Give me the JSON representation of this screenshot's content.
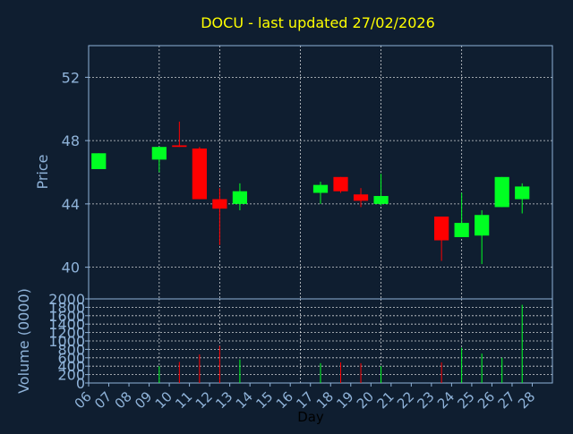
{
  "title": "DOCU - last updated 27/02/2026",
  "colors": {
    "background": "#0f1e30",
    "title": "#ffff00",
    "axis_text": "#8fb3d9",
    "xlabel_text": "#000000",
    "frame": "#8fb3d9",
    "grid": "#ffffff",
    "up": "#00ff22",
    "down": "#ff0000"
  },
  "chart_data": [
    {
      "type": "candlestick",
      "title": "DOCU - last updated 27/02/2026",
      "ylabel": "Price",
      "ylim": [
        38,
        54
      ],
      "yticks": [
        40,
        44,
        48,
        52
      ],
      "grid": true,
      "x_categories": [
        "06",
        "07",
        "08",
        "09",
        "10",
        "11",
        "12",
        "13",
        "14",
        "15",
        "16",
        "17",
        "18",
        "19",
        "20",
        "21",
        "22",
        "23",
        "24",
        "25",
        "26",
        "27",
        "28"
      ],
      "candles": [
        {
          "day": "06",
          "open": 46.2,
          "high": 47.2,
          "low": 46.2,
          "close": 47.2
        },
        {
          "day": "09",
          "open": 46.8,
          "high": 47.6,
          "low": 46.0,
          "close": 47.6
        },
        {
          "day": "10",
          "open": 47.7,
          "high": 49.2,
          "low": 47.6,
          "close": 47.6
        },
        {
          "day": "11",
          "open": 47.5,
          "high": 47.6,
          "low": 44.3,
          "close": 44.3
        },
        {
          "day": "12",
          "open": 44.3,
          "high": 45.0,
          "low": 41.4,
          "close": 43.7
        },
        {
          "day": "13",
          "open": 44.0,
          "high": 45.3,
          "low": 43.6,
          "close": 44.8
        },
        {
          "day": "17",
          "open": 44.7,
          "high": 45.4,
          "low": 44.0,
          "close": 45.2
        },
        {
          "day": "18",
          "open": 45.7,
          "high": 45.7,
          "low": 44.7,
          "close": 44.8
        },
        {
          "day": "19",
          "open": 44.6,
          "high": 45.0,
          "low": 43.8,
          "close": 44.2
        },
        {
          "day": "20",
          "open": 44.0,
          "high": 45.9,
          "low": 43.9,
          "close": 44.5
        },
        {
          "day": "23",
          "open": 43.2,
          "high": 43.2,
          "low": 40.4,
          "close": 41.7
        },
        {
          "day": "24",
          "open": 41.9,
          "high": 44.7,
          "low": 41.9,
          "close": 42.8
        },
        {
          "day": "25",
          "open": 42.0,
          "high": 43.6,
          "low": 40.2,
          "close": 43.3
        },
        {
          "day": "26",
          "open": 43.8,
          "high": 45.7,
          "low": 43.8,
          "close": 45.7
        },
        {
          "day": "27",
          "open": 44.3,
          "high": 45.3,
          "low": 43.4,
          "close": 45.1
        }
      ]
    },
    {
      "type": "bar",
      "ylabel": "Volume (0000)",
      "xlabel": "Day",
      "ylim": [
        0,
        2000
      ],
      "yticks": [
        0,
        200,
        400,
        600,
        800,
        1000,
        1200,
        1400,
        1600,
        1800,
        2000
      ],
      "grid": true,
      "x_categories": [
        "06",
        "07",
        "08",
        "09",
        "10",
        "11",
        "12",
        "13",
        "14",
        "15",
        "16",
        "17",
        "18",
        "19",
        "20",
        "21",
        "22",
        "23",
        "24",
        "25",
        "26",
        "27",
        "28"
      ],
      "bars": [
        {
          "day": "09",
          "value": 400,
          "color": "up"
        },
        {
          "day": "10",
          "value": 500,
          "color": "down"
        },
        {
          "day": "11",
          "value": 680,
          "color": "down"
        },
        {
          "day": "12",
          "value": 880,
          "color": "down"
        },
        {
          "day": "13",
          "value": 560,
          "color": "up"
        },
        {
          "day": "17",
          "value": 470,
          "color": "up"
        },
        {
          "day": "18",
          "value": 490,
          "color": "down"
        },
        {
          "day": "19",
          "value": 470,
          "color": "down"
        },
        {
          "day": "20",
          "value": 400,
          "color": "up"
        },
        {
          "day": "23",
          "value": 490,
          "color": "down"
        },
        {
          "day": "24",
          "value": 840,
          "color": "up"
        },
        {
          "day": "25",
          "value": 700,
          "color": "up"
        },
        {
          "day": "26",
          "value": 600,
          "color": "up"
        },
        {
          "day": "27",
          "value": 1860,
          "color": "up"
        }
      ]
    }
  ]
}
